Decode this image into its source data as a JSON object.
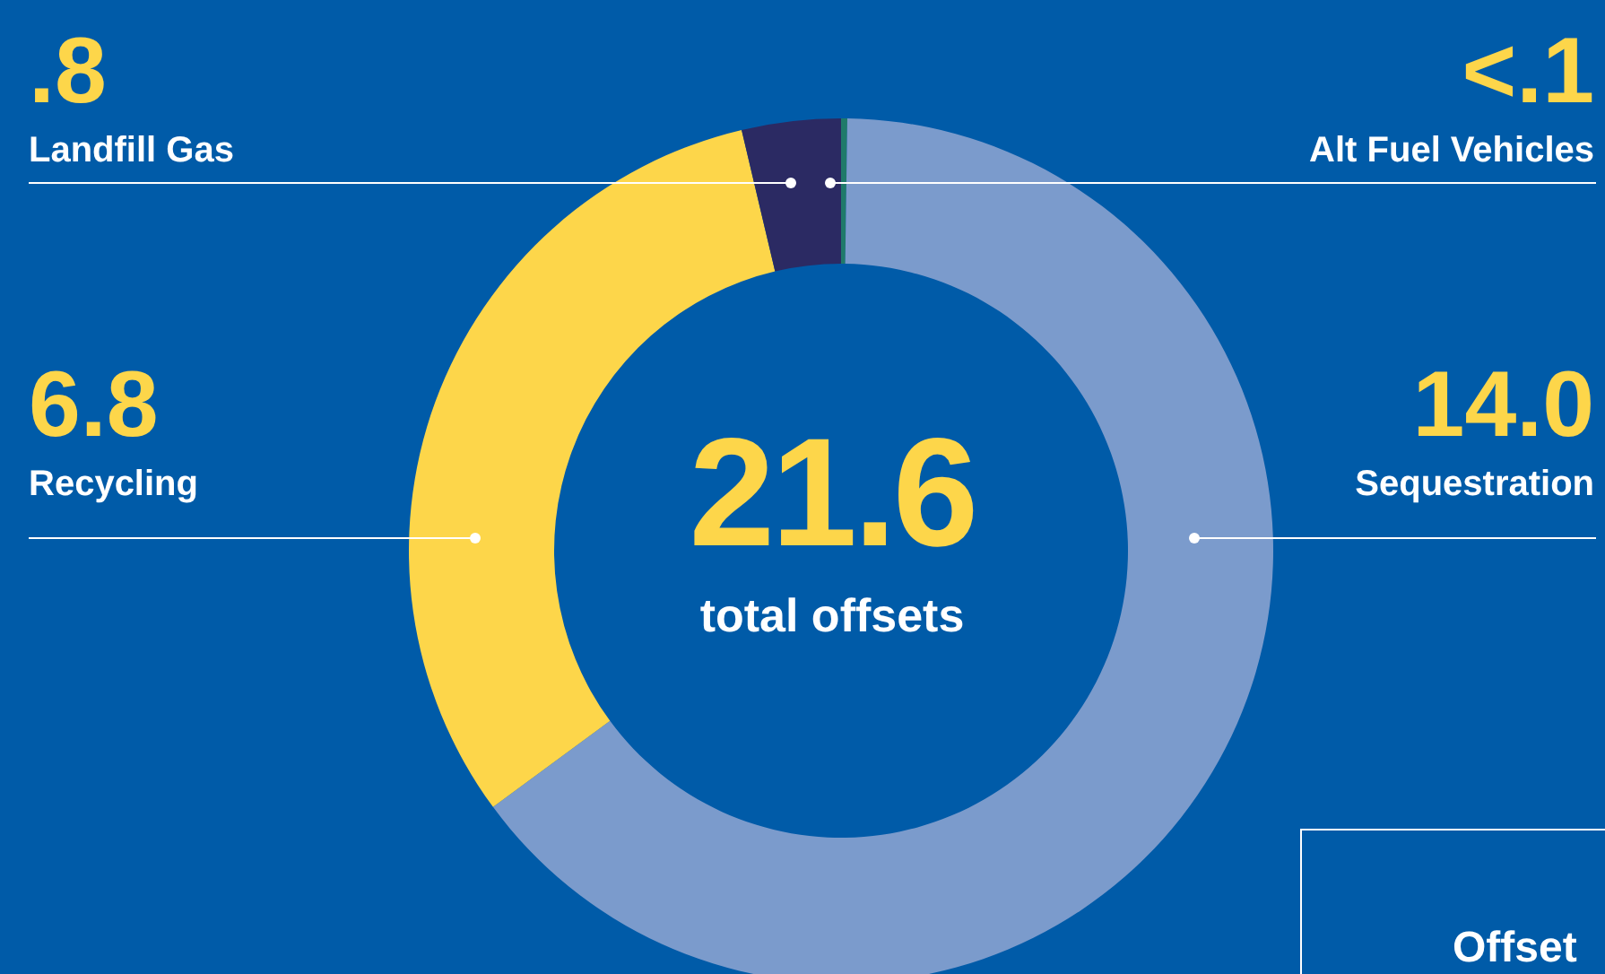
{
  "chart_data": {
    "type": "donut",
    "categories": [
      "Alt Fuel Vehicles",
      "Sequestration",
      "Recycling",
      "Landfill Gas"
    ],
    "values": [
      0.05,
      14.0,
      6.8,
      0.8
    ],
    "value_labels": [
      "<.1",
      "14.0",
      "6.8",
      ".8"
    ],
    "colors": [
      "#1f7a6a",
      "#7b9bcc",
      "#fdd64a",
      "#2b2a63"
    ],
    "annotations": [
      "21.6",
      "total offsets",
      "Offset"
    ]
  }
}
